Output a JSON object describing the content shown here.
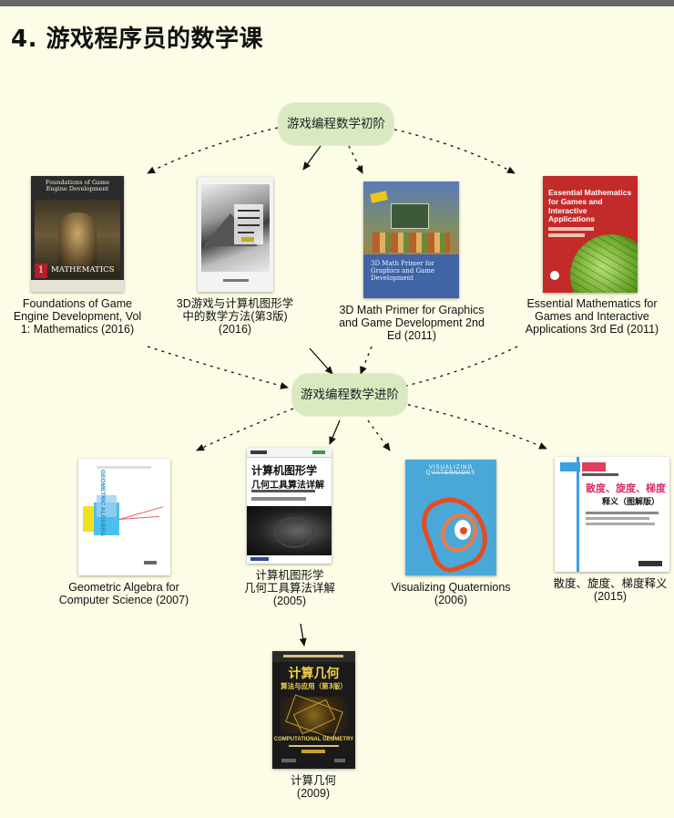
{
  "title": "4. 游戏程序员的数学课",
  "hubs": {
    "beginner": "游戏编程数学初阶",
    "advanced": "游戏编程数学进阶"
  },
  "books": {
    "foundations": {
      "caption": "Foundations of Game Engine Development, Vol 1: Mathematics (2016)",
      "cover_title": "Foundations of Game Engine Development",
      "cover_volume": "1",
      "cover_subject": "MATHEMATICS"
    },
    "methods3d": {
      "caption_line1": "3D游戏与计算机图形学",
      "caption_line2": "中的数学方法(第3版)",
      "caption_line3": "(2016)"
    },
    "primer": {
      "caption": "3D Math Primer for Graphics and Game Development 2nd Ed (2011)",
      "cover_title": "3D Math Primer for Graphics and Game Development"
    },
    "essential": {
      "caption": "Essential Mathematics for Games and Interactive Applications 3rd Ed (2011)",
      "cover_title": "Essential Mathematics for Games and Interactive Applications"
    },
    "geometric": {
      "caption": "Geometric Algebra for Computer Science (2007)",
      "cover_title": "GEOMETRIC ALGEBRA"
    },
    "cgalgo": {
      "caption_line1": "计算机图形学",
      "caption_line2": "几何工具算法详解",
      "caption_line3": "(2005)",
      "cover_title1": "计算机图形学",
      "cover_title2": "几何工具算法详解"
    },
    "quaternions": {
      "caption": "Visualizing Quaternions (2006)",
      "cover_title": "VISUALIZING QUATERNIONS"
    },
    "vector": {
      "caption_line1": "散度、旋度、梯度释义",
      "caption_line2": "(2015)",
      "cover_title": "散度、旋度、梯度",
      "cover_subtitle": "释义（图解版）"
    },
    "compgeo": {
      "caption_line1": "计算几何",
      "caption_line2": "(2009)",
      "cover_title1": "计算几何",
      "cover_title2": "算法与应用（第3版）",
      "cover_en": "COMPUTATIONAL GEOMETRY"
    }
  },
  "colors": {
    "background": "#fcfce7",
    "hub_fill": "#d9eac1",
    "arrow": "#111111"
  }
}
